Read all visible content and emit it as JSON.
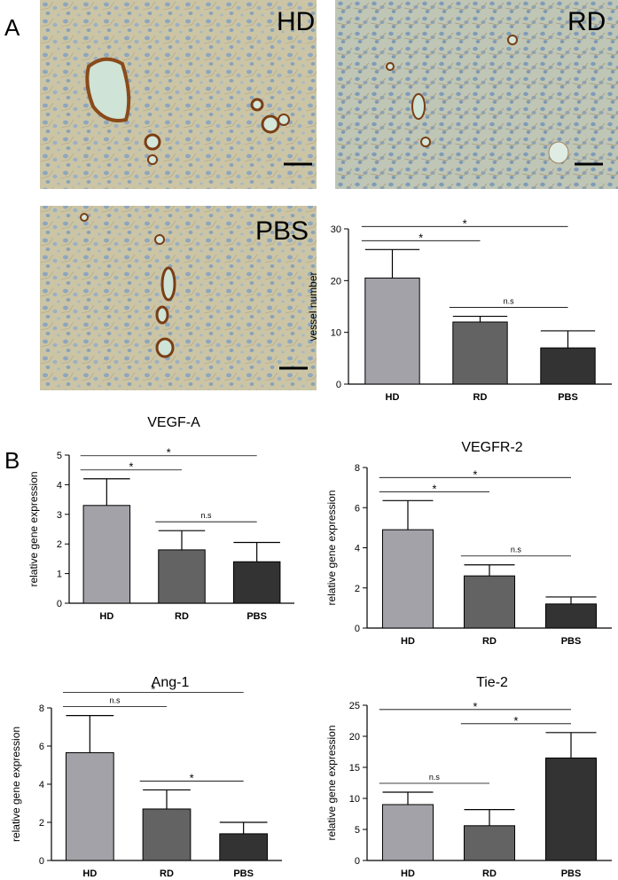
{
  "panel_labels": [
    "A",
    "B"
  ],
  "images": [
    {
      "label": "HD"
    },
    {
      "label": "RD"
    },
    {
      "label": "PBS"
    }
  ],
  "chart_data": [
    {
      "type": "bar",
      "ylabel": "vessel number",
      "categories": [
        "HD",
        "RD",
        "PBS"
      ],
      "values": [
        20.5,
        12,
        7
      ],
      "errors": [
        5.5,
        1.1,
        3.3
      ],
      "colors": [
        "#a3a2a8",
        "#636363",
        "#333333"
      ],
      "ylim": [
        0,
        30
      ],
      "yticks": [
        0,
        10,
        20,
        30
      ],
      "significance": [
        {
          "groups": [
            "HD",
            "RD"
          ],
          "label": "*"
        },
        {
          "groups": [
            "HD",
            "PBS"
          ],
          "label": "*"
        },
        {
          "groups": [
            "RD",
            "PBS"
          ],
          "label": "n.s"
        }
      ]
    },
    {
      "type": "bar",
      "title": "VEGF-A",
      "ylabel": "relative gene expression",
      "categories": [
        "HD",
        "RD",
        "PBS"
      ],
      "values": [
        3.3,
        1.8,
        1.4
      ],
      "errors": [
        0.9,
        0.65,
        0.65
      ],
      "colors": [
        "#a3a2a8",
        "#636363",
        "#333333"
      ],
      "ylim": [
        0,
        5
      ],
      "yticks": [
        0,
        1,
        2,
        3,
        4,
        5
      ],
      "significance": [
        {
          "groups": [
            "HD",
            "RD"
          ],
          "label": "*"
        },
        {
          "groups": [
            "HD",
            "PBS"
          ],
          "label": "*"
        },
        {
          "groups": [
            "RD",
            "PBS"
          ],
          "label": "n.s"
        }
      ]
    },
    {
      "type": "bar",
      "title": "VEGFR-2",
      "ylabel": "relative gene expression",
      "categories": [
        "HD",
        "RD",
        "PBS"
      ],
      "values": [
        4.9,
        2.6,
        1.2
      ],
      "errors": [
        1.45,
        0.55,
        0.35
      ],
      "colors": [
        "#a3a2a8",
        "#636363",
        "#333333"
      ],
      "ylim": [
        0,
        8
      ],
      "yticks": [
        0,
        2,
        4,
        6,
        8
      ],
      "significance": [
        {
          "groups": [
            "HD",
            "RD"
          ],
          "label": "*"
        },
        {
          "groups": [
            "HD",
            "PBS"
          ],
          "label": "*"
        },
        {
          "groups": [
            "RD",
            "PBS"
          ],
          "label": "n.s"
        }
      ]
    },
    {
      "type": "bar",
      "title": "Ang-1",
      "ylabel": "relative gene expression",
      "categories": [
        "HD",
        "RD",
        "PBS"
      ],
      "values": [
        5.65,
        2.7,
        1.4
      ],
      "errors": [
        1.95,
        1.0,
        0.6
      ],
      "colors": [
        "#a3a2a8",
        "#636363",
        "#333333"
      ],
      "ylim": [
        0,
        8
      ],
      "yticks": [
        0,
        2,
        4,
        6,
        8
      ],
      "significance": [
        {
          "groups": [
            "HD",
            "RD"
          ],
          "label": "n.s"
        },
        {
          "groups": [
            "HD",
            "PBS"
          ],
          "label": "*"
        },
        {
          "groups": [
            "RD",
            "PBS"
          ],
          "label": "*"
        }
      ]
    },
    {
      "type": "bar",
      "title": "Tie-2",
      "ylabel": "relative gene expression",
      "categories": [
        "HD",
        "RD",
        "PBS"
      ],
      "values": [
        9,
        5.6,
        16.5
      ],
      "errors": [
        2,
        2.6,
        4.1
      ],
      "colors": [
        "#a3a2a8",
        "#636363",
        "#333333"
      ],
      "ylim": [
        0,
        25
      ],
      "yticks": [
        0,
        5,
        10,
        15,
        20,
        25
      ],
      "significance": [
        {
          "groups": [
            "HD",
            "RD"
          ],
          "label": "n.s"
        },
        {
          "groups": [
            "RD",
            "PBS"
          ],
          "label": "*"
        },
        {
          "groups": [
            "HD",
            "PBS"
          ],
          "label": "*"
        }
      ]
    }
  ]
}
